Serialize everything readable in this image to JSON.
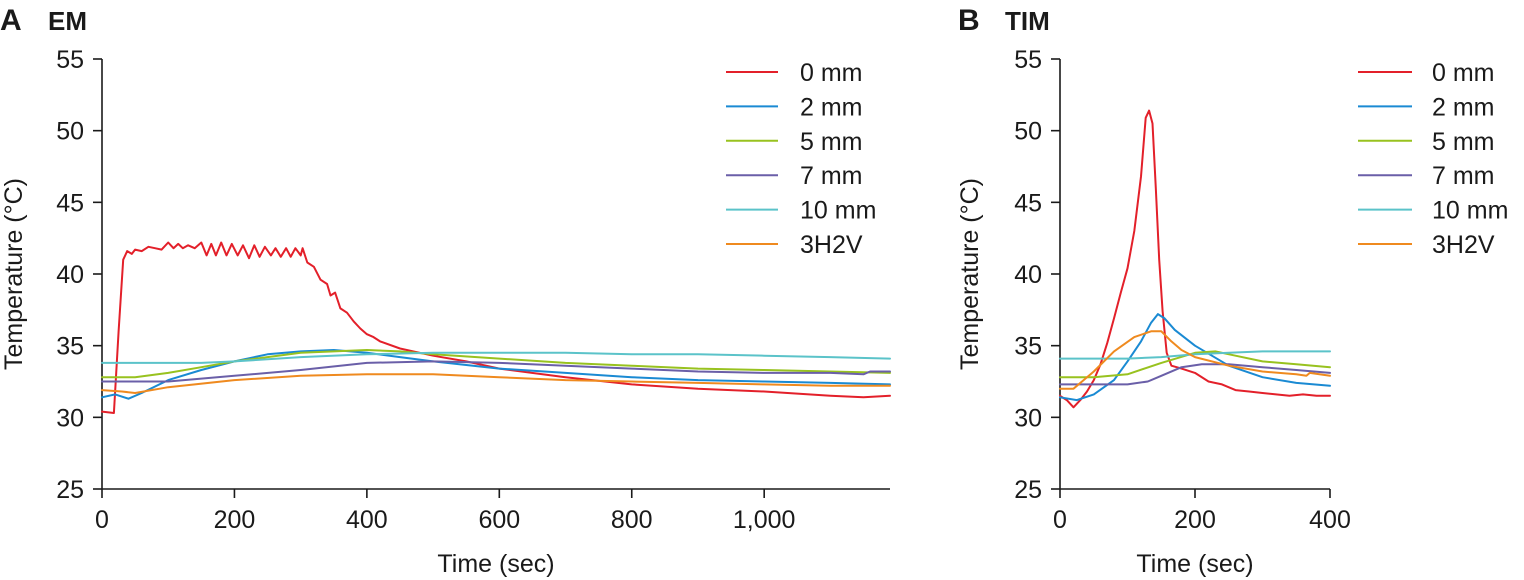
{
  "chart_data": [
    {
      "type": "line",
      "panel": "A",
      "title": "EM",
      "xlabel": "Time (sec)",
      "ylabel": "Temperature (°C)",
      "xlim": [
        0,
        1190
      ],
      "ylim": [
        25,
        55
      ],
      "xticks": [
        0,
        200,
        400,
        600,
        800,
        1000
      ],
      "xtick_labels": [
        "0",
        "200",
        "400",
        "600",
        "800",
        "1,000"
      ],
      "yticks": [
        25,
        30,
        35,
        40,
        45,
        50,
        55
      ],
      "ytick_labels": [
        "25",
        "30",
        "35",
        "40",
        "45",
        "50",
        "55"
      ],
      "grid": false,
      "legend_position": "top-right",
      "series": [
        {
          "name": "0 mm",
          "color": "#e3202a",
          "points": [
            [
              0,
              30.4
            ],
            [
              18,
              30.3
            ],
            [
              25,
              36
            ],
            [
              32,
              41
            ],
            [
              38,
              41.6
            ],
            [
              45,
              41.4
            ],
            [
              50,
              41.7
            ],
            [
              60,
              41.6
            ],
            [
              70,
              41.9
            ],
            [
              80,
              41.8
            ],
            [
              90,
              41.7
            ],
            [
              100,
              42.2
            ],
            [
              108,
              41.8
            ],
            [
              115,
              42.1
            ],
            [
              122,
              41.8
            ],
            [
              130,
              42
            ],
            [
              140,
              41.8
            ],
            [
              150,
              42.2
            ],
            [
              158,
              41.3
            ],
            [
              165,
              42.1
            ],
            [
              172,
              41.3
            ],
            [
              180,
              42.2
            ],
            [
              188,
              41.3
            ],
            [
              196,
              42.1
            ],
            [
              205,
              41.3
            ],
            [
              213,
              42
            ],
            [
              222,
              41.1
            ],
            [
              230,
              42
            ],
            [
              238,
              41.2
            ],
            [
              246,
              41.9
            ],
            [
              255,
              41.3
            ],
            [
              262,
              41.8
            ],
            [
              270,
              41.2
            ],
            [
              278,
              41.8
            ],
            [
              285,
              41.2
            ],
            [
              292,
              41.8
            ],
            [
              300,
              41.3
            ],
            [
              303,
              41.8
            ],
            [
              310,
              40.8
            ],
            [
              320,
              40.5
            ],
            [
              330,
              39.6
            ],
            [
              340,
              39.3
            ],
            [
              345,
              38.5
            ],
            [
              352,
              38.7
            ],
            [
              360,
              37.6
            ],
            [
              370,
              37.3
            ],
            [
              380,
              36.7
            ],
            [
              390,
              36.2
            ],
            [
              400,
              35.8
            ],
            [
              410,
              35.6
            ],
            [
              420,
              35.3
            ],
            [
              450,
              34.8
            ],
            [
              480,
              34.5
            ],
            [
              500,
              34.3
            ],
            [
              550,
              33.9
            ],
            [
              600,
              33.4
            ],
            [
              700,
              32.8
            ],
            [
              800,
              32.3
            ],
            [
              900,
              32
            ],
            [
              1000,
              31.8
            ],
            [
              1100,
              31.5
            ],
            [
              1150,
              31.4
            ],
            [
              1190,
              31.5
            ]
          ]
        },
        {
          "name": "2 mm",
          "color": "#1a8ad3",
          "points": [
            [
              0,
              31.4
            ],
            [
              20,
              31.6
            ],
            [
              40,
              31.3
            ],
            [
              60,
              31.7
            ],
            [
              100,
              32.6
            ],
            [
              150,
              33.3
            ],
            [
              200,
              33.9
            ],
            [
              250,
              34.4
            ],
            [
              300,
              34.6
            ],
            [
              350,
              34.7
            ],
            [
              400,
              34.5
            ],
            [
              450,
              34.2
            ],
            [
              500,
              33.9
            ],
            [
              600,
              33.4
            ],
            [
              700,
              33.1
            ],
            [
              800,
              32.8
            ],
            [
              900,
              32.6
            ],
            [
              1000,
              32.5
            ],
            [
              1100,
              32.4
            ],
            [
              1190,
              32.3
            ]
          ]
        },
        {
          "name": "5 mm",
          "color": "#98c21f",
          "points": [
            [
              0,
              32.8
            ],
            [
              50,
              32.8
            ],
            [
              100,
              33.1
            ],
            [
              150,
              33.5
            ],
            [
              200,
              33.9
            ],
            [
              250,
              34.2
            ],
            [
              300,
              34.5
            ],
            [
              350,
              34.6
            ],
            [
              400,
              34.7
            ],
            [
              450,
              34.6
            ],
            [
              500,
              34.4
            ],
            [
              600,
              34.1
            ],
            [
              700,
              33.8
            ],
            [
              800,
              33.6
            ],
            [
              900,
              33.4
            ],
            [
              1000,
              33.3
            ],
            [
              1100,
              33.2
            ],
            [
              1190,
              33.1
            ]
          ]
        },
        {
          "name": "7 mm",
          "color": "#6a5fa8",
          "points": [
            [
              0,
              32.5
            ],
            [
              100,
              32.5
            ],
            [
              200,
              32.9
            ],
            [
              300,
              33.3
            ],
            [
              400,
              33.8
            ],
            [
              500,
              33.9
            ],
            [
              600,
              33.8
            ],
            [
              700,
              33.6
            ],
            [
              800,
              33.4
            ],
            [
              900,
              33.2
            ],
            [
              1000,
              33.1
            ],
            [
              1100,
              33.1
            ],
            [
              1150,
              33
            ],
            [
              1160,
              33.2
            ],
            [
              1190,
              33.2
            ]
          ]
        },
        {
          "name": "10 mm",
          "color": "#5bc3c9",
          "points": [
            [
              0,
              33.8
            ],
            [
              50,
              33.8
            ],
            [
              100,
              33.8
            ],
            [
              150,
              33.8
            ],
            [
              200,
              33.9
            ],
            [
              300,
              34.2
            ],
            [
              400,
              34.4
            ],
            [
              500,
              34.5
            ],
            [
              600,
              34.5
            ],
            [
              700,
              34.5
            ],
            [
              800,
              34.4
            ],
            [
              900,
              34.4
            ],
            [
              1000,
              34.3
            ],
            [
              1100,
              34.2
            ],
            [
              1190,
              34.1
            ]
          ]
        },
        {
          "name": "3H2V",
          "color": "#ef8a1f",
          "points": [
            [
              0,
              31.9
            ],
            [
              30,
              31.8
            ],
            [
              50,
              31.7
            ],
            [
              100,
              32.1
            ],
            [
              200,
              32.6
            ],
            [
              300,
              32.9
            ],
            [
              400,
              33
            ],
            [
              500,
              33
            ],
            [
              600,
              32.8
            ],
            [
              700,
              32.6
            ],
            [
              800,
              32.5
            ],
            [
              900,
              32.4
            ],
            [
              1000,
              32.3
            ],
            [
              1100,
              32.2
            ],
            [
              1190,
              32.2
            ]
          ]
        }
      ]
    },
    {
      "type": "line",
      "panel": "B",
      "title": "TIM",
      "xlabel": "Time (sec)",
      "ylabel": "Temperature (°C)",
      "xlim": [
        0,
        400
      ],
      "ylim": [
        25,
        55
      ],
      "xticks": [
        0,
        200,
        400
      ],
      "xtick_labels": [
        "0",
        "200",
        "400"
      ],
      "yticks": [
        25,
        30,
        35,
        40,
        45,
        50,
        55
      ],
      "ytick_labels": [
        "25",
        "30",
        "35",
        "40",
        "45",
        "50",
        "55"
      ],
      "grid": false,
      "legend_position": "top-right",
      "series": [
        {
          "name": "0 mm",
          "color": "#e3202a",
          "points": [
            [
              0,
              31.5
            ],
            [
              10,
              31.2
            ],
            [
              20,
              30.7
            ],
            [
              30,
              31.2
            ],
            [
              40,
              31.8
            ],
            [
              50,
              32.6
            ],
            [
              60,
              33.7
            ],
            [
              70,
              35.2
            ],
            [
              80,
              36.9
            ],
            [
              90,
              38.7
            ],
            [
              100,
              40.4
            ],
            [
              110,
              43
            ],
            [
              120,
              46.8
            ],
            [
              127,
              50.9
            ],
            [
              132,
              51.4
            ],
            [
              137,
              50.5
            ],
            [
              142,
              46
            ],
            [
              147,
              41
            ],
            [
              152,
              37.4
            ],
            [
              158,
              34.5
            ],
            [
              165,
              33.6
            ],
            [
              180,
              33.4
            ],
            [
              200,
              33.1
            ],
            [
              220,
              32.5
            ],
            [
              240,
              32.3
            ],
            [
              260,
              31.9
            ],
            [
              280,
              31.8
            ],
            [
              300,
              31.7
            ],
            [
              320,
              31.6
            ],
            [
              340,
              31.5
            ],
            [
              360,
              31.6
            ],
            [
              380,
              31.5
            ],
            [
              400,
              31.5
            ]
          ]
        },
        {
          "name": "2 mm",
          "color": "#1a8ad3",
          "points": [
            [
              0,
              31.4
            ],
            [
              25,
              31.2
            ],
            [
              50,
              31.6
            ],
            [
              80,
              32.6
            ],
            [
              100,
              33.9
            ],
            [
              120,
              35.3
            ],
            [
              135,
              36.6
            ],
            [
              145,
              37.2
            ],
            [
              155,
              36.9
            ],
            [
              170,
              36.1
            ],
            [
              200,
              35
            ],
            [
              250,
              33.6
            ],
            [
              300,
              32.8
            ],
            [
              350,
              32.4
            ],
            [
              400,
              32.2
            ]
          ]
        },
        {
          "name": "5 mm",
          "color": "#98c21f",
          "points": [
            [
              0,
              32.8
            ],
            [
              50,
              32.8
            ],
            [
              100,
              33
            ],
            [
              150,
              33.8
            ],
            [
              200,
              34.5
            ],
            [
              230,
              34.6
            ],
            [
              260,
              34.3
            ],
            [
              300,
              33.9
            ],
            [
              350,
              33.7
            ],
            [
              400,
              33.5
            ]
          ]
        },
        {
          "name": "7 mm",
          "color": "#6a5fa8",
          "points": [
            [
              0,
              32.3
            ],
            [
              50,
              32.3
            ],
            [
              100,
              32.3
            ],
            [
              130,
              32.5
            ],
            [
              150,
              32.9
            ],
            [
              180,
              33.5
            ],
            [
              210,
              33.7
            ],
            [
              250,
              33.7
            ],
            [
              300,
              33.5
            ],
            [
              350,
              33.3
            ],
            [
              400,
              33.1
            ]
          ]
        },
        {
          "name": "10 mm",
          "color": "#5bc3c9",
          "points": [
            [
              0,
              34.1
            ],
            [
              50,
              34.1
            ],
            [
              100,
              34.1
            ],
            [
              150,
              34.2
            ],
            [
              200,
              34.4
            ],
            [
              250,
              34.5
            ],
            [
              300,
              34.6
            ],
            [
              350,
              34.6
            ],
            [
              400,
              34.6
            ]
          ]
        },
        {
          "name": "3H2V",
          "color": "#ef8a1f",
          "points": [
            [
              0,
              32
            ],
            [
              20,
              32
            ],
            [
              50,
              33.2
            ],
            [
              80,
              34.6
            ],
            [
              110,
              35.6
            ],
            [
              135,
              36
            ],
            [
              150,
              36
            ],
            [
              165,
              35.3
            ],
            [
              180,
              34.7
            ],
            [
              200,
              34.2
            ],
            [
              250,
              33.6
            ],
            [
              300,
              33.2
            ],
            [
              350,
              33
            ],
            [
              365,
              32.9
            ],
            [
              370,
              33.1
            ],
            [
              400,
              32.9
            ]
          ]
        }
      ]
    }
  ]
}
